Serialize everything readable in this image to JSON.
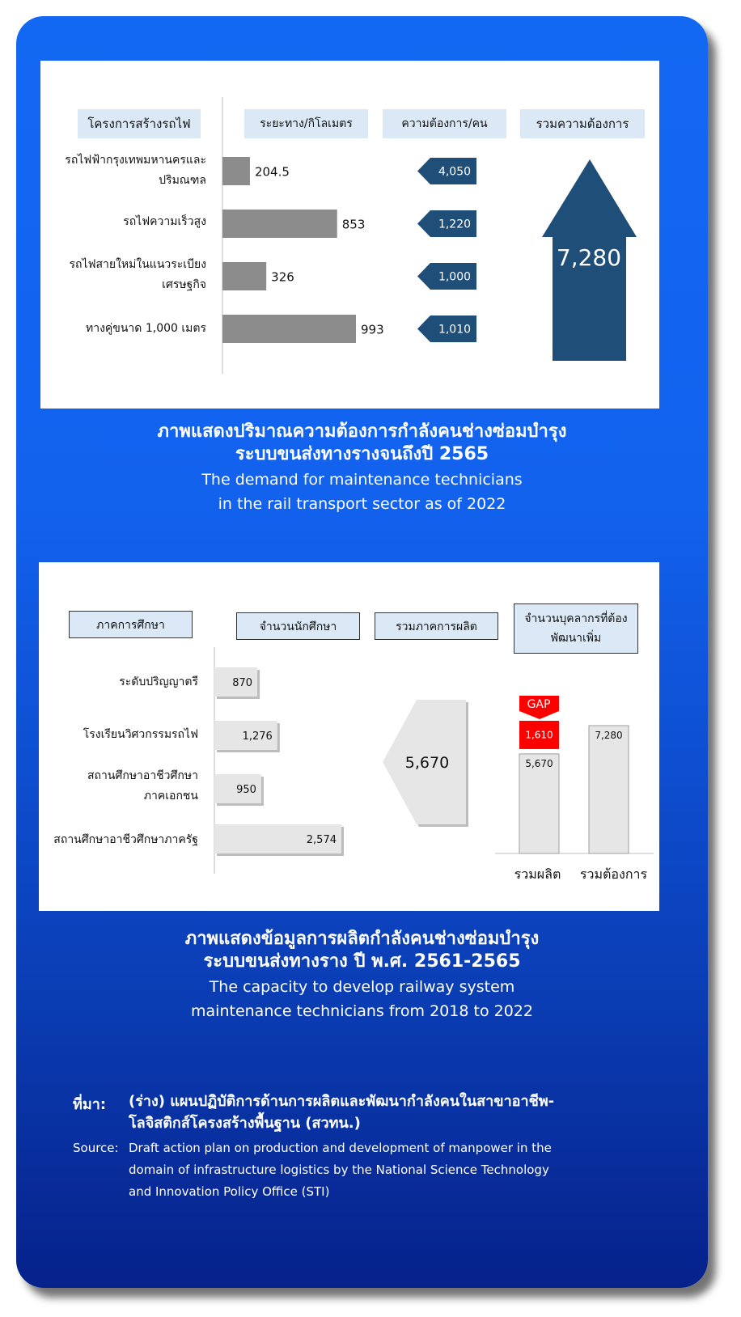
{
  "chart_data": [
    {
      "type": "bar",
      "orientation": "horizontal",
      "headers": {
        "categories": "โครงการสร้างรถไฟ",
        "distance": "ระยะทาง/กิโลเมตร",
        "demand": "ความต้องการ/คน",
        "total": "รวมความต้องการ"
      },
      "categories": [
        [
          "รถไฟฟ้ากรุงเทพมหานครและ",
          "ปริมณฑล"
        ],
        [
          "รถไฟความเร็วสูง"
        ],
        [
          "รถไฟสายใหม่ในแนวระเบียง",
          "เศรษฐกิจ"
        ],
        [
          "ทางคู่ขนาด 1,000 เมตร"
        ]
      ],
      "values": [
        204.5,
        853,
        326,
        993
      ],
      "value_labels": [
        "204.5",
        "853",
        "326",
        "993"
      ],
      "demand_labels": [
        "4,050",
        "1,220",
        "1,000",
        "1,010"
      ],
      "total_label": "7,280",
      "colors": {
        "bar": "#8c8c8c",
        "arrow": "#1f4e79",
        "header_bg": "#dbe8f6"
      }
    },
    {
      "type": "bar",
      "orientation": "horizontal",
      "headers": {
        "categories": "ภาคการศึกษา",
        "students": "จำนวนนักศึกษา",
        "production_total": "รวมภาคการผลิต",
        "personnel": [
          "จำนวนบุคลากรที่ต้อง",
          "พัฒนาเพิ่ม"
        ]
      },
      "categories": [
        [
          "ระดับปริญญาตรี"
        ],
        [
          "โรงเรียนวิศวกรรมรถไฟ"
        ],
        [
          "สถานศึกษาอาชีวศึกษา",
          "ภาคเอกชน"
        ],
        [
          "สถานศึกษาอาชีวศึกษาภาครัฐ"
        ]
      ],
      "values": [
        870,
        1276,
        950,
        2574
      ],
      "value_labels": [
        "870",
        "1,276",
        "950",
        "2,574"
      ],
      "production_total_label": "5,670",
      "gap_chart": {
        "type": "bar",
        "categories": [
          "รวมผลิต",
          "รวมต้องการ"
        ],
        "values": [
          5670,
          7280
        ],
        "value_labels": [
          "5,670",
          "7,280"
        ],
        "gap_value": 1610,
        "gap_label": "1,610",
        "gap_tag": "GAP"
      },
      "colors": {
        "bar": "#e6e6e6",
        "gap": "#ff0000"
      }
    }
  ],
  "captions": {
    "first": {
      "th": [
        "ภาพแสดงปริมาณความต้องการกำลังคนช่างซ่อมบำรุง",
        "ระบบขนส่งทางรางจนถึงปี 2565"
      ],
      "en": [
        "The demand for maintenance technicians",
        "in the rail transport sector as of 2022"
      ]
    },
    "second": {
      "th": [
        "ภาพแสดงข้อมูลการผลิตกำลังคนช่างซ่อมบำรุง",
        "ระบบขนส่งทางราง ปี พ.ศ. 2561-2565"
      ],
      "en": [
        "The capacity to develop railway system",
        "maintenance technicians from 2018 to 2022"
      ]
    }
  },
  "source": {
    "th_label": "ที่มา:",
    "th_lines": [
      "(ร่าง) แผนปฏิบัติการด้านการผลิตและพัฒนากำลังคนในสาขาอาชีพ-",
      "โลจิสติกส์โครงสร้างพื้นฐาน (สวทน.)"
    ],
    "en_label": "Source:",
    "en_lines": [
      "Draft action plan on production and development of manpower in the",
      "domain of infrastructure logistics by the National Science Technology",
      "and Innovation Policy Office (STI)"
    ]
  }
}
